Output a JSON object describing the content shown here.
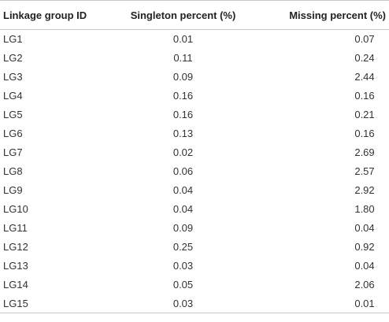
{
  "table": {
    "headers": [
      "Linkage group ID",
      "Singleton percent (%)",
      "Missing percent (%)"
    ],
    "rows": [
      [
        "LG1",
        "0.01",
        "0.07"
      ],
      [
        "LG2",
        "0.11",
        "0.24"
      ],
      [
        "LG3",
        "0.09",
        "2.44"
      ],
      [
        "LG4",
        "0.16",
        "0.16"
      ],
      [
        "LG5",
        "0.16",
        "0.21"
      ],
      [
        "LG6",
        "0.13",
        "0.16"
      ],
      [
        "LG7",
        "0.02",
        "2.69"
      ],
      [
        "LG8",
        "0.06",
        "2.57"
      ],
      [
        "LG9",
        "0.04",
        "2.92"
      ],
      [
        "LG10",
        "0.04",
        "1.80"
      ],
      [
        "LG11",
        "0.09",
        "0.04"
      ],
      [
        "LG12",
        "0.25",
        "0.92"
      ],
      [
        "LG13",
        "0.03",
        "0.04"
      ],
      [
        "LG14",
        "0.05",
        "2.06"
      ],
      [
        "LG15",
        "0.03",
        "0.01"
      ]
    ]
  }
}
